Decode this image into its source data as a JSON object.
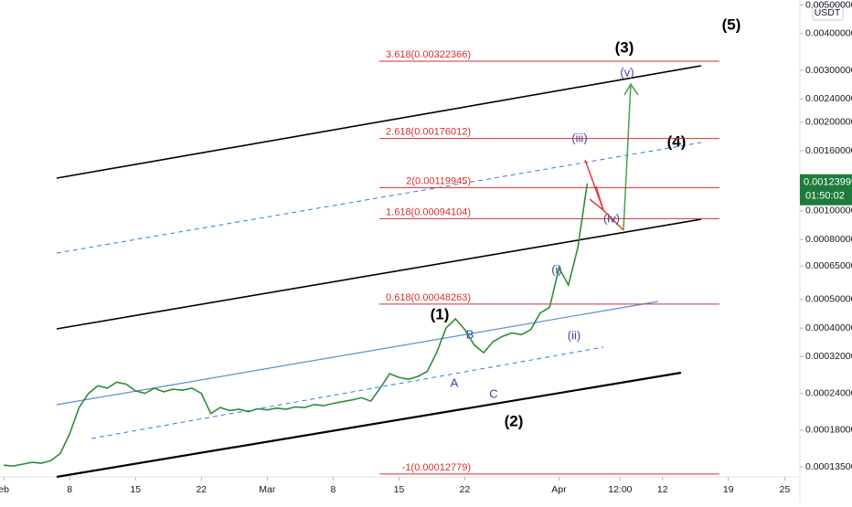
{
  "chart_data": {
    "type": "line",
    "log": true,
    "currency": "USDT",
    "last_price": 0.00123999,
    "countdown": "01:50:02",
    "color": "#2e8b3a",
    "x": [
      0,
      1,
      2,
      3,
      4,
      5,
      6,
      7,
      8,
      9,
      10,
      11,
      12,
      13,
      14,
      15,
      16,
      17,
      18,
      19,
      20,
      21,
      22,
      23,
      24,
      25,
      26,
      27,
      28,
      29,
      30,
      31,
      32,
      33,
      34,
      35,
      36,
      37,
      38,
      39,
      40,
      41,
      42,
      43,
      44,
      45,
      46,
      47,
      48,
      49,
      50,
      51,
      52,
      53,
      54,
      55,
      56,
      57,
      58,
      59,
      60,
      61,
      62
    ],
    "values": [
      0.000137,
      0.000136,
      0.000138,
      0.00014,
      0.000139,
      0.000142,
      0.00015,
      0.000175,
      0.000215,
      0.00024,
      0.000255,
      0.00025,
      0.000262,
      0.000258,
      0.000245,
      0.00024,
      0.00025,
      0.000243,
      0.000248,
      0.000246,
      0.00025,
      0.00024,
      0.000205,
      0.000215,
      0.00021,
      0.000212,
      0.000208,
      0.000213,
      0.000211,
      0.000214,
      0.000212,
      0.000216,
      0.000215,
      0.00022,
      0.000218,
      0.000222,
      0.000225,
      0.000228,
      0.000232,
      0.000226,
      0.00025,
      0.00028,
      0.000272,
      0.000268,
      0.000274,
      0.000285,
      0.00033,
      0.0004,
      0.00043,
      0.000395,
      0.00035,
      0.00033,
      0.00036,
      0.000375,
      0.000385,
      0.00038,
      0.000395,
      0.00045,
      0.00047,
      0.00064,
      0.00056,
      0.00075,
      0.00123999
    ],
    "xlim": [
      -0.4,
      84.6
    ],
    "xticks": [
      {
        "value": 0,
        "label": "eb"
      },
      {
        "value": 7,
        "label": "8"
      },
      {
        "value": 14,
        "label": "15"
      },
      {
        "value": 21,
        "label": "22"
      },
      {
        "value": 28,
        "label": "Mar"
      },
      {
        "value": 35,
        "label": "8"
      },
      {
        "value": 42,
        "label": "15"
      },
      {
        "value": 49,
        "label": "22"
      },
      {
        "value": 59,
        "label": "Apr"
      },
      {
        "value": 65.5,
        "label": "12:00"
      },
      {
        "value": 70,
        "label": "12"
      },
      {
        "value": 77,
        "label": "19"
      },
      {
        "value": 83,
        "label": "25"
      }
    ],
    "ylim": [
      0.000125,
      0.0052
    ],
    "yticks": [
      {
        "value": 0.005,
        "label": "0.00500000"
      },
      {
        "value": 0.004,
        "label": "0.00400000"
      },
      {
        "value": 0.003,
        "label": "0.00300000"
      },
      {
        "value": 0.0024,
        "label": "0.00240000"
      },
      {
        "value": 0.002,
        "label": "0.00200000"
      },
      {
        "value": 0.0016,
        "label": "0.00160000"
      },
      {
        "value": 0.001,
        "label": "0.00100000"
      },
      {
        "value": 0.0008,
        "label": "0.00080000"
      },
      {
        "value": 0.00065,
        "label": "0.00065000"
      },
      {
        "value": 0.0005,
        "label": "0.00050000"
      },
      {
        "value": 0.0004,
        "label": "0.00040000"
      },
      {
        "value": 0.00032,
        "label": "0.00032000"
      },
      {
        "value": 0.00024,
        "label": "0.00024000"
      },
      {
        "value": 0.00018,
        "label": "0.00018000"
      },
      {
        "value": 0.000135,
        "label": "0.00013500"
      }
    ],
    "fib_levels": [
      {
        "value": 0.00322366,
        "label": "3.618(0.00322366)"
      },
      {
        "value": 0.00176012,
        "label": "2.618(0.00176012)"
      },
      {
        "value": 0.00119945,
        "label": "2(0.00119945)"
      },
      {
        "value": 0.00094104,
        "label": "1.618(0.00094104)"
      },
      {
        "value": 0.00048263,
        "label": "0.618(0.00048263)"
      },
      {
        "value": 0.00012779,
        "label": "-1(0.00012779)"
      }
    ],
    "fib_color": "#d32f2f",
    "annotations": [
      "(5)",
      "(3)",
      "(4)",
      "(1)",
      "(2)",
      "A",
      "B",
      "C",
      "(i)",
      "(ii)",
      "(iii)",
      "(iv)",
      "(v)"
    ]
  }
}
